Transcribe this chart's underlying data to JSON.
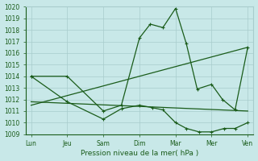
{
  "title": "Pression niveau de la mer( hPa )",
  "bg_color": "#c8e8e8",
  "grid_color": "#a8cccc",
  "line_color": "#1a5c1a",
  "ylim": [
    1009,
    1020
  ],
  "yticks": [
    1009,
    1010,
    1011,
    1012,
    1013,
    1014,
    1015,
    1016,
    1017,
    1018,
    1019,
    1020
  ],
  "x_labels": [
    "Lun",
    "Jeu",
    "Sam",
    "Dim",
    "Mar",
    "Mer",
    "Ven"
  ],
  "x_positions": [
    0,
    1,
    2,
    3,
    4,
    5,
    6
  ],
  "lines": [
    {
      "x": [
        0,
        1,
        2,
        2.5,
        3.0,
        3.3,
        3.65,
        4.0,
        4.3,
        4.6,
        5.0,
        5.3,
        5.65,
        6.0
      ],
      "y": [
        1014,
        1014,
        1011,
        1011.5,
        1017.3,
        1018.5,
        1018.2,
        1019.85,
        1016.8,
        1012.9,
        1013.3,
        1012.0,
        1011.1,
        1016.5
      ],
      "marker": "+"
    },
    {
      "x": [
        0,
        1,
        2,
        2.5,
        3.0,
        3.35,
        3.65,
        4.0,
        4.3,
        4.65,
        5.0,
        5.35,
        5.65,
        6.0
      ],
      "y": [
        1014,
        1011.8,
        1010.3,
        1011.2,
        1011.5,
        1011.3,
        1011.1,
        1010.0,
        1009.5,
        1009.2,
        1009.2,
        1009.5,
        1009.5,
        1010.0
      ],
      "marker": "+"
    },
    {
      "x": [
        0,
        6
      ],
      "y": [
        1011.5,
        1016.5
      ],
      "marker": null
    },
    {
      "x": [
        0,
        6
      ],
      "y": [
        1011.8,
        1011.0
      ],
      "marker": null
    }
  ]
}
